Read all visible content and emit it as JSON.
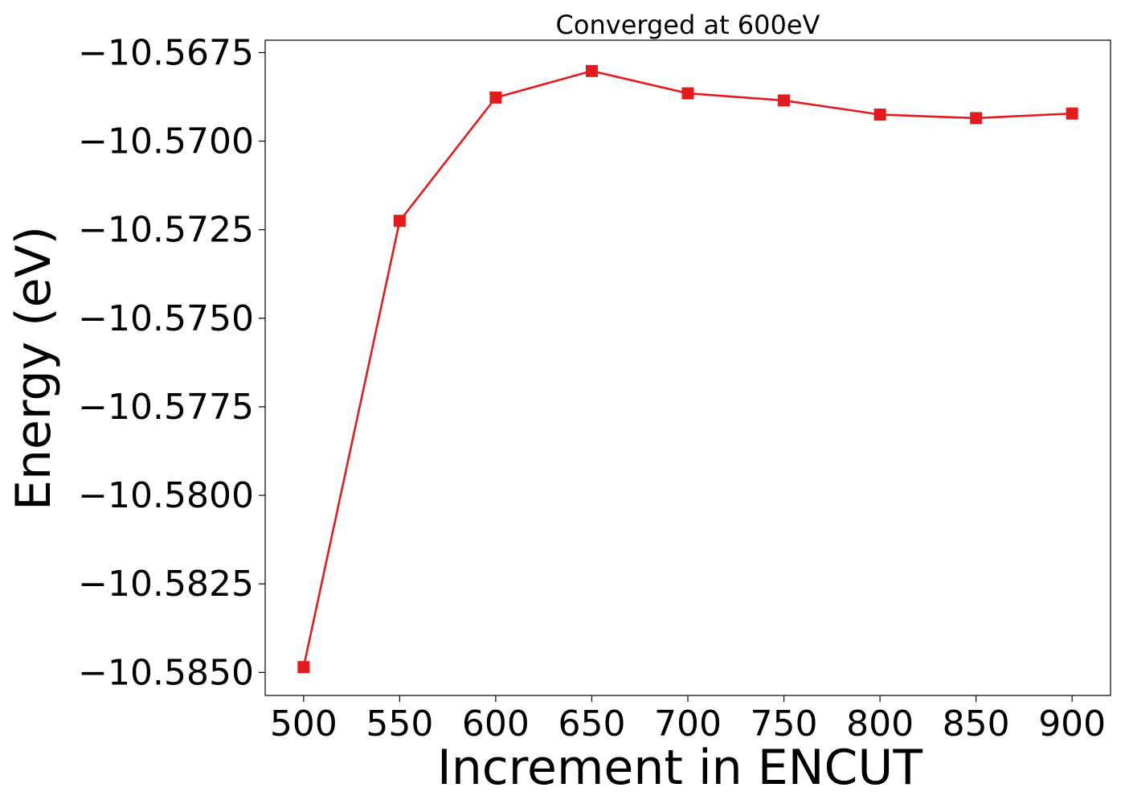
{
  "chart_data": {
    "type": "line",
    "title": "Converged at 600eV",
    "xlabel": "Increment in ENCUT",
    "ylabel": "Energy (eV)",
    "x": [
      500,
      550,
      600,
      650,
      700,
      750,
      800,
      850,
      900
    ],
    "series": [
      {
        "values": [
          -10.58485,
          -10.57225,
          -10.56877,
          -10.56802,
          -10.56865,
          -10.56885,
          -10.56925,
          -10.56935,
          -10.56922
        ],
        "color": "#e41a1c",
        "marker": "square"
      }
    ],
    "xticks": [
      500,
      550,
      600,
      650,
      700,
      750,
      800,
      850,
      900
    ],
    "xtick_labels": [
      "500",
      "550",
      "600",
      "650",
      "700",
      "750",
      "800",
      "850",
      "900"
    ],
    "yticks": [
      -10.585,
      -10.5825,
      -10.58,
      -10.5775,
      -10.575,
      -10.5725,
      -10.57,
      -10.5675
    ],
    "ytick_labels": [
      "−10.5850",
      "−10.5825",
      "−10.5800",
      "−10.5775",
      "−10.5750",
      "−10.5725",
      "−10.5700",
      "−10.5675"
    ],
    "xlim": [
      480,
      920
    ],
    "ylim": [
      -10.58565,
      -10.56715
    ],
    "grid": false,
    "legend": "none"
  }
}
